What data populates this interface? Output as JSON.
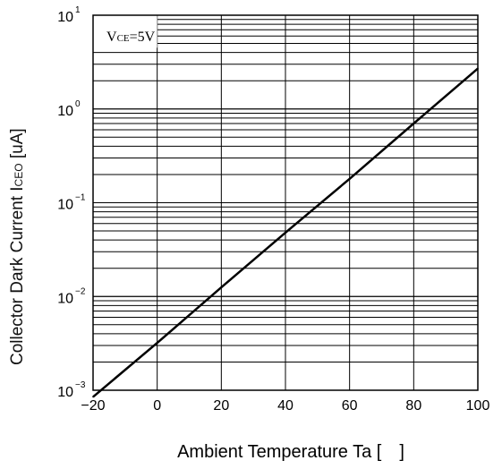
{
  "chart_data": {
    "type": "line",
    "title": "",
    "xlabel": "Ambient Temperature Ta [ ]",
    "ylabel": "Collector Dark Current I",
    "ylabel_sub": "CEO",
    "ylabel_unit": " [uA]",
    "x_scale": "linear",
    "y_scale": "log",
    "xlim": [
      -20,
      100
    ],
    "ylim": [
      0.001,
      10
    ],
    "grid": true,
    "x_ticks": [
      -20,
      0,
      20,
      40,
      60,
      80,
      100
    ],
    "x_tick_labels": [
      "−20",
      "0",
      "20",
      "40",
      "60",
      "80",
      "100"
    ],
    "y_ticks": [
      0.001,
      0.01,
      0.1,
      1,
      10
    ],
    "y_tick_labels": [
      {
        "base": "10",
        "exp": "−3"
      },
      {
        "base": "10",
        "exp": "−2"
      },
      {
        "base": "10",
        "exp": "−1"
      },
      {
        "base": "10",
        "exp": "0"
      },
      {
        "base": "10",
        "exp": "1"
      }
    ],
    "annotation": {
      "main": "V",
      "sub": "CE",
      "rest": "=5V"
    },
    "series": [
      {
        "x": [
          -20,
          0,
          20,
          40,
          60,
          80,
          100
        ],
        "y": [
          0.00085,
          0.0032,
          0.0125,
          0.048,
          0.18,
          0.7,
          2.7
        ]
      }
    ]
  }
}
